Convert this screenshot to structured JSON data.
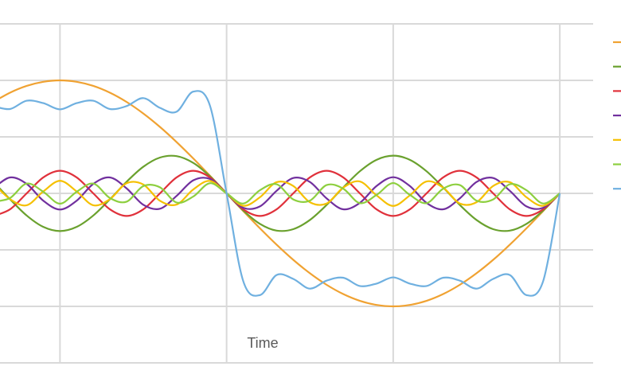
{
  "chart_data": {
    "type": "line",
    "x_label": "Time",
    "x": [
      0.6,
      0.7,
      0.8,
      0.9,
      1.0,
      1.1,
      1.2,
      1.3,
      1.4,
      1.5,
      1.6,
      1.7,
      1.8,
      1.9,
      2.0,
      2.1,
      2.2,
      2.3,
      2.4,
      2.5,
      2.6,
      2.7,
      2.8,
      2.9,
      3.0,
      3.1,
      3.2,
      3.3,
      3.4,
      3.5,
      3.6,
      3.7,
      3.8,
      3.9,
      4.0
    ],
    "xlim": [
      0.64,
      4.2
    ],
    "ylim": [
      -3,
      3
    ],
    "xticks": [
      1,
      2,
      3,
      4
    ],
    "yticks": [
      -3,
      -2,
      -1,
      0,
      1,
      2,
      3
    ],
    "grid": true,
    "legend": "right",
    "series": [
      {
        "color": "#f0a232",
        "values": [
          1.618,
          1.782,
          1.902,
          1.975,
          2,
          1.975,
          1.902,
          1.782,
          1.618,
          1.414,
          1.176,
          0.908,
          0.618,
          0.313,
          0,
          -0.313,
          -0.618,
          -0.908,
          -1.176,
          -1.414,
          -1.618,
          -1.782,
          -1.902,
          -1.975,
          -2,
          -1.975,
          -1.902,
          -1.782,
          -1.618,
          -1.414,
          -1.176,
          -0.908,
          -0.618,
          -0.313,
          0
        ]
      },
      {
        "color": "#6aa12e",
        "values": [
          0.206,
          -0.104,
          -0.392,
          -0.594,
          -0.667,
          -0.594,
          -0.392,
          -0.104,
          0.206,
          0.471,
          0.634,
          0.659,
          0.539,
          0.303,
          0,
          -0.303,
          -0.539,
          -0.659,
          -0.634,
          -0.471,
          -0.206,
          0.104,
          0.392,
          0.594,
          0.667,
          0.594,
          0.392,
          0.104,
          -0.206,
          -0.471,
          -0.634,
          -0.659,
          -0.539,
          -0.303,
          0
        ]
      },
      {
        "color": "#e0313b",
        "values": [
          -0.4,
          -0.283,
          0,
          0.283,
          0.4,
          0.283,
          0,
          -0.283,
          -0.4,
          -0.283,
          0,
          0.283,
          0.4,
          0.283,
          0,
          -0.283,
          -0.4,
          -0.283,
          0,
          0.283,
          0.4,
          0.283,
          0,
          -0.283,
          -0.4,
          -0.283,
          0,
          0.283,
          0.4,
          0.283,
          0,
          -0.283,
          -0.4,
          -0.283,
          0
        ]
      },
      {
        "color": "#71309e",
        "values": [
          0.088,
          0.282,
          0.168,
          -0.13,
          -0.286,
          -0.13,
          0.168,
          0.282,
          0.088,
          -0.202,
          -0.272,
          -0.045,
          0.231,
          0.255,
          0,
          -0.255,
          -0.231,
          0.045,
          0.272,
          0.202,
          -0.088,
          -0.282,
          -0.168,
          0.13,
          0.286,
          0.13,
          -0.168,
          -0.282,
          -0.088,
          0.202,
          0.272,
          0.045,
          -0.231,
          -0.255,
          0
        ]
      },
      {
        "color": "#f5c000",
        "values": [
          0.18,
          -0.101,
          -0.211,
          0.035,
          0.222,
          0.035,
          -0.211,
          -0.101,
          0.18,
          0.157,
          -0.131,
          -0.198,
          0.069,
          0.22,
          0,
          -0.22,
          -0.069,
          0.198,
          0.131,
          -0.157,
          -0.18,
          0.101,
          0.211,
          -0.035,
          -0.222,
          -0.035,
          0.211,
          0.101,
          -0.18,
          -0.157,
          0.131,
          0.198,
          -0.069,
          -0.22,
          0
        ]
      },
      {
        "color": "#8dcf3f",
        "values": [
          -0.147,
          -0.083,
          0.173,
          0.028,
          -0.182,
          0.028,
          0.173,
          -0.083,
          -0.147,
          0.129,
          0.107,
          -0.162,
          -0.056,
          0.18,
          0,
          -0.18,
          0.056,
          0.162,
          -0.107,
          -0.129,
          0.147,
          0.083,
          -0.173,
          -0.028,
          0.182,
          -0.028,
          -0.173,
          0.083,
          0.147,
          -0.129,
          -0.107,
          0.162,
          0.056,
          -0.18,
          0
        ]
      },
      {
        "color": "#6fb0e0",
        "values": [
          1.545,
          1.493,
          1.64,
          1.597,
          1.487,
          1.597,
          1.64,
          1.493,
          1.545,
          1.686,
          1.514,
          1.445,
          1.801,
          1.554,
          0,
          -1.554,
          -1.801,
          -1.445,
          -1.514,
          -1.686,
          -1.545,
          -1.493,
          -1.64,
          -1.597,
          -1.487,
          -1.597,
          -1.64,
          -1.493,
          -1.545,
          -1.686,
          -1.514,
          -1.445,
          -1.801,
          -1.554,
          0
        ]
      }
    ]
  }
}
